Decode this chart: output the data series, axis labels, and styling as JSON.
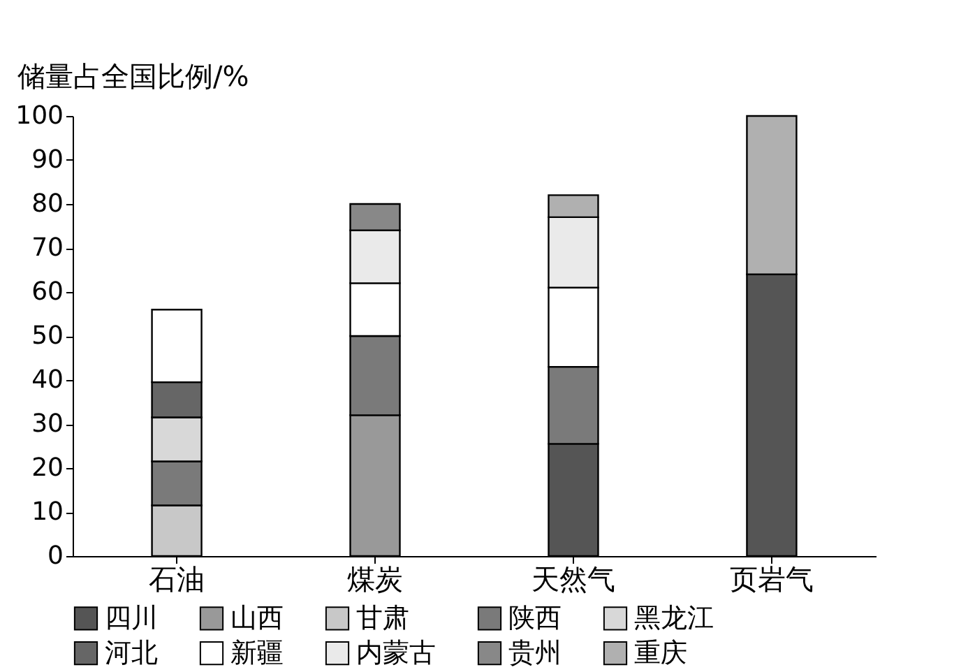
{
  "chart_data": {
    "type": "bar",
    "stacked": true,
    "ylabel": "储量占全国比例/%",
    "categories": [
      "石油",
      "煤炭",
      "天然气",
      "页岩气"
    ],
    "ylim": [
      0,
      100
    ],
    "yticks": [
      0,
      10,
      20,
      30,
      40,
      50,
      60,
      70,
      80,
      90,
      100
    ],
    "grid": false,
    "legend": "bottom",
    "series": [
      {
        "name": "四川",
        "color": "#555555",
        "values": [
          null,
          null,
          25.5,
          64
        ]
      },
      {
        "name": "山西",
        "color": "#999999",
        "values": [
          null,
          32,
          null,
          null
        ]
      },
      {
        "name": "甘肃",
        "color": "#c8c8c8",
        "values": [
          11.5,
          null,
          null,
          null
        ]
      },
      {
        "name": "陕西",
        "color": "#7a7a7a",
        "values": [
          10,
          18,
          17.5,
          null
        ]
      },
      {
        "name": "黑龙江",
        "color": "#d8d8d8",
        "values": [
          10,
          null,
          null,
          null
        ]
      },
      {
        "name": "河北",
        "color": "#666666",
        "values": [
          8,
          null,
          null,
          null
        ]
      },
      {
        "name": "新疆",
        "color": "#ffffff",
        "values": [
          16.5,
          12,
          18,
          null
        ]
      },
      {
        "name": "内蒙古",
        "color": "#eaeaea",
        "values": [
          null,
          12,
          16,
          null
        ]
      },
      {
        "name": "贵州",
        "color": "#888888",
        "values": [
          null,
          6,
          null,
          null
        ]
      },
      {
        "name": "重庆",
        "color": "#b0b0b0",
        "values": [
          null,
          null,
          5,
          36
        ]
      }
    ]
  }
}
